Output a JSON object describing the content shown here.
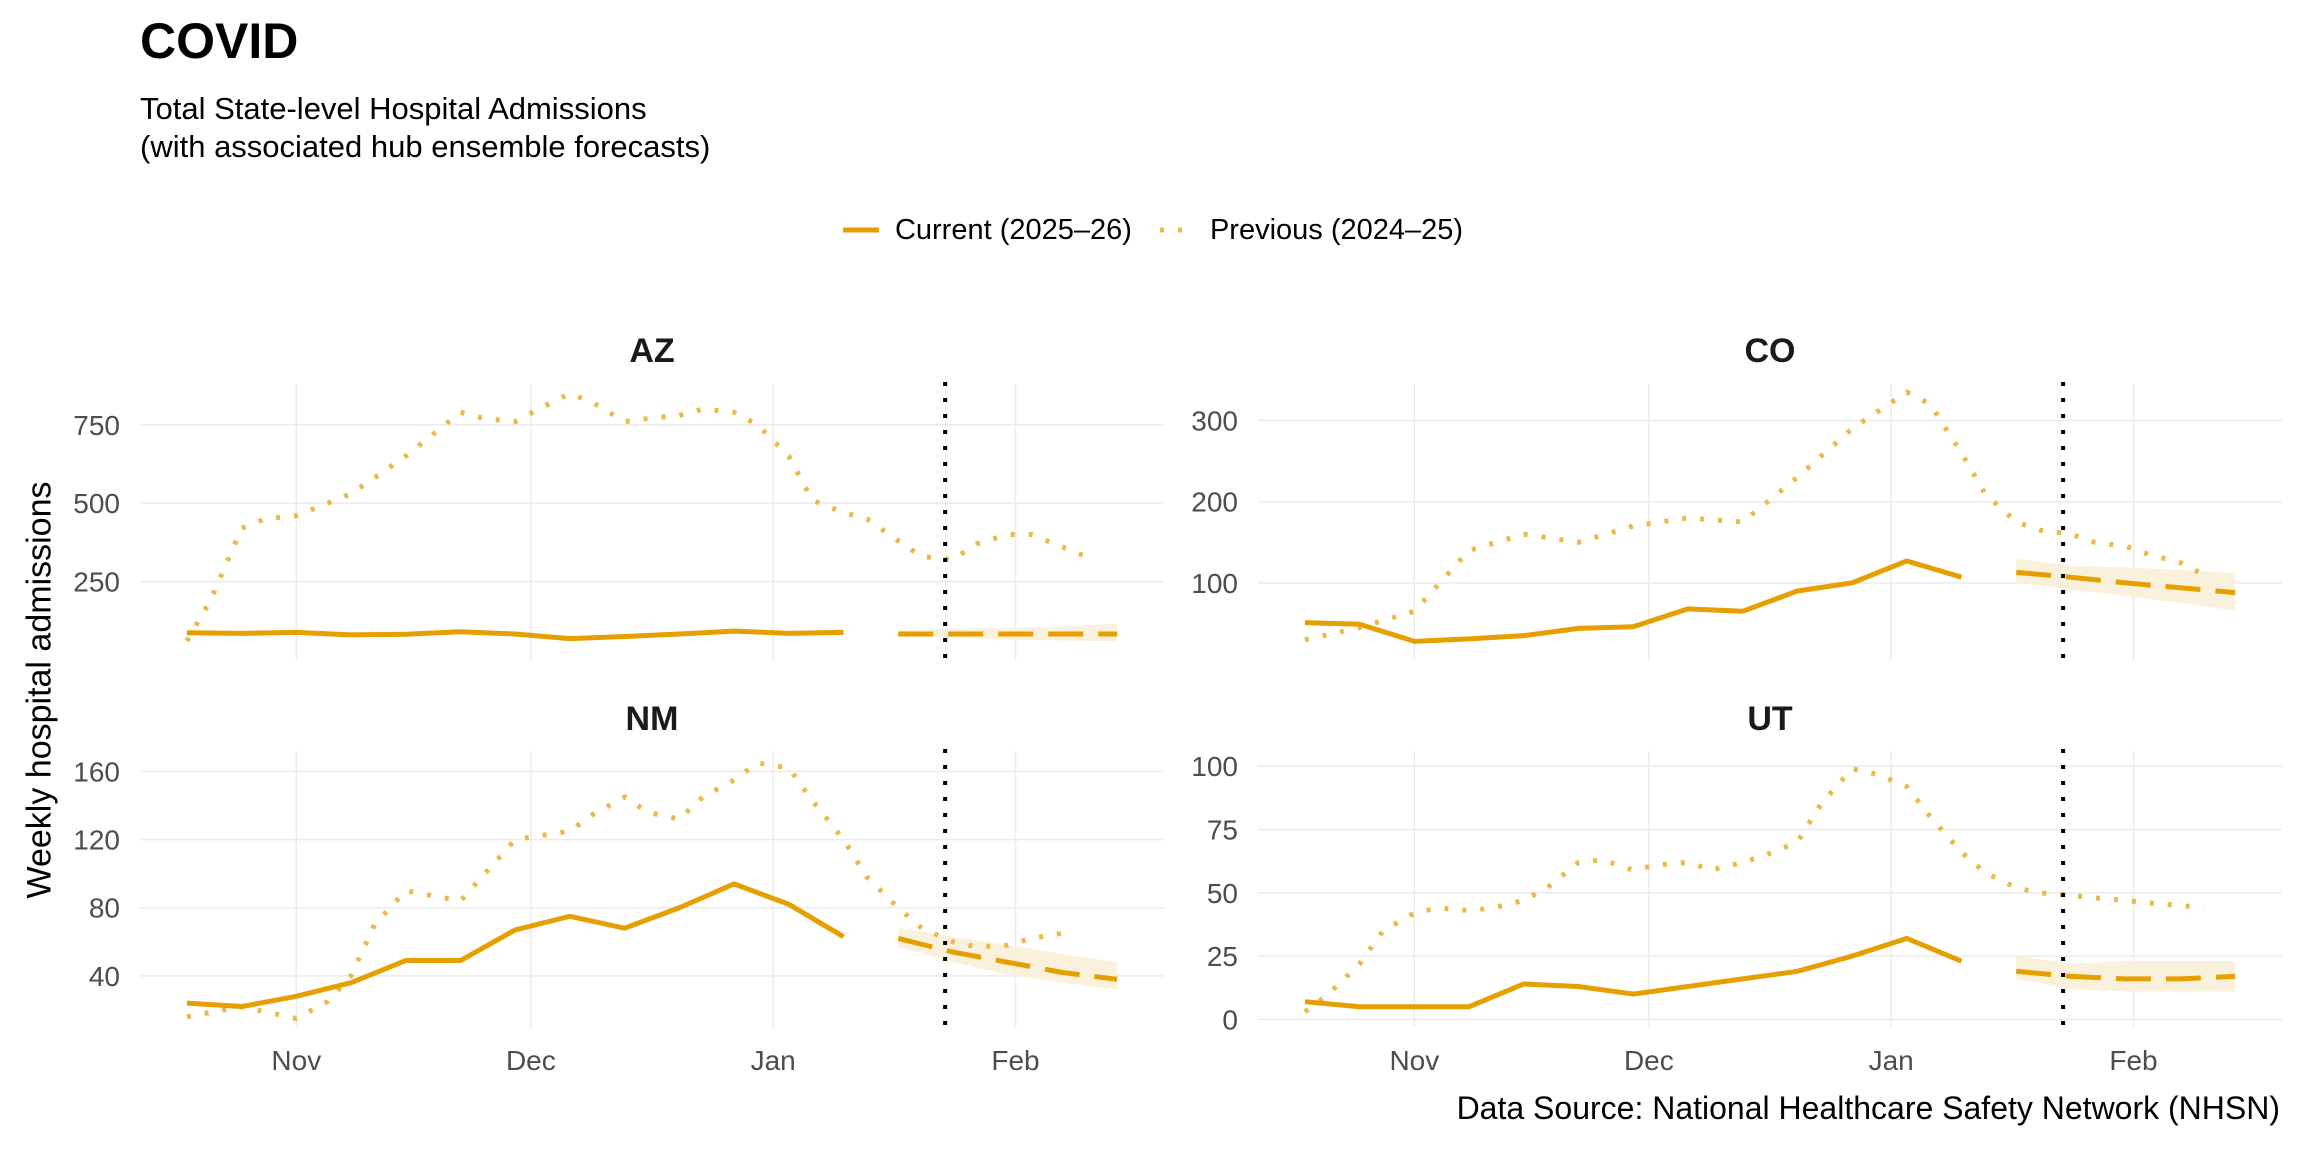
{
  "header": {
    "title": "COVID",
    "subtitle": "Total State-level Hospital Admissions\n(with associated hub ensemble forecasts)"
  },
  "legend": {
    "position": "top-center",
    "items": [
      {
        "label": "Current (2025–26)",
        "style": "solid"
      },
      {
        "label": "Previous (2024–25)",
        "style": "dotted"
      }
    ]
  },
  "colors": {
    "series": "#E69F00",
    "previous": "#EBB84A",
    "band": "#FAEFD9",
    "reference_line": "#000000",
    "grid": "#EBEBEB",
    "tick_text": "#4D4D4D"
  },
  "footer": {
    "source": "Data Source: National Healthcare Safety Network (NHSN)"
  },
  "chart_data": {
    "type": "line",
    "title": "COVID",
    "subtitle": "Total State-level Hospital Admissions (with associated hub ensemble forecasts)",
    "xlabel": "",
    "ylabel": "Weekly hospital admissions",
    "x_unit": "days since Oct 1",
    "x_ticks": [
      {
        "label": "Nov",
        "x": 31
      },
      {
        "label": "Dec",
        "x": 61
      },
      {
        "label": "Jan",
        "x": 92
      },
      {
        "label": "Feb",
        "x": 123
      }
    ],
    "xlim": [
      11,
      142
    ],
    "reference_date_x": 114,
    "grid": true,
    "panels": [
      {
        "name": "AZ",
        "ylim": [
          0,
          880
        ],
        "yticks": [
          250,
          500,
          750
        ],
        "current": {
          "x": [
            17,
            24,
            31,
            38,
            45,
            52,
            59,
            66,
            73,
            80,
            87,
            94,
            101
          ],
          "y": [
            87,
            85,
            88,
            80,
            82,
            90,
            83,
            68,
            75,
            83,
            92,
            85,
            88
          ]
        },
        "forecast": {
          "x": [
            108,
            115,
            122,
            129,
            136
          ],
          "median": [
            83,
            83,
            83,
            83,
            83
          ],
          "lower": [
            78,
            72,
            65,
            62,
            60
          ],
          "upper": [
            95,
            100,
            102,
            108,
            115
          ]
        },
        "previous": {
          "x": [
            17,
            20,
            24,
            27,
            31,
            38,
            45,
            52,
            55,
            59,
            62,
            66,
            69,
            73,
            76,
            80,
            83,
            87,
            90,
            94,
            97,
            101,
            104,
            108,
            111,
            115,
            118,
            122,
            125,
            129,
            132
          ],
          "y": [
            60,
            190,
            420,
            450,
            460,
            530,
            650,
            790,
            770,
            760,
            800,
            850,
            820,
            760,
            770,
            780,
            800,
            790,
            750,
            650,
            510,
            470,
            450,
            380,
            330,
            320,
            370,
            400,
            400,
            360,
            330
          ]
        }
      },
      {
        "name": "CO",
        "ylim": [
          5,
          345
        ],
        "yticks": [
          100,
          200,
          300
        ],
        "current": {
          "x": [
            17,
            24,
            31,
            38,
            45,
            52,
            59,
            66,
            73,
            80,
            87,
            94,
            101
          ],
          "y": [
            51,
            49,
            28,
            31,
            35,
            44,
            46,
            68,
            65,
            90,
            100,
            127,
            107
          ]
        },
        "forecast": {
          "x": [
            108,
            115,
            122,
            129,
            136
          ],
          "median": [
            113,
            107,
            100,
            94,
            88
          ],
          "lower": [
            100,
            92,
            84,
            75,
            66
          ],
          "upper": [
            130,
            121,
            119,
            116,
            112
          ]
        },
        "previous": {
          "x": [
            17,
            24,
            31,
            38,
            45,
            52,
            59,
            66,
            73,
            80,
            87,
            94,
            97,
            101,
            104,
            108,
            111,
            115,
            118,
            122,
            125,
            129,
            132
          ],
          "y": [
            30,
            45,
            65,
            140,
            160,
            150,
            170,
            180,
            175,
            230,
            290,
            335,
            320,
            260,
            210,
            175,
            165,
            160,
            150,
            145,
            135,
            125,
            110
          ]
        }
      },
      {
        "name": "NM",
        "ylim": [
          10,
          172
        ],
        "yticks": [
          40,
          80,
          120,
          160
        ],
        "current": {
          "x": [
            17,
            24,
            31,
            38,
            45,
            52,
            59,
            66,
            73,
            80,
            87,
            94,
            101
          ],
          "y": [
            24,
            22,
            28,
            36,
            49,
            49,
            67,
            75,
            68,
            80,
            94,
            82,
            63
          ]
        },
        "forecast": {
          "x": [
            108,
            115,
            122,
            129,
            136
          ],
          "median": [
            62,
            54,
            48,
            42,
            38
          ],
          "lower": [
            57,
            48,
            41,
            36,
            32
          ],
          "upper": [
            68,
            63,
            58,
            53,
            48
          ]
        },
        "previous": {
          "x": [
            17,
            24,
            31,
            35,
            38,
            41,
            45,
            52,
            59,
            66,
            69,
            73,
            76,
            80,
            83,
            87,
            90,
            94,
            97,
            101,
            104,
            108,
            111,
            115,
            118,
            122,
            125,
            129
          ],
          "y": [
            16,
            22,
            15,
            25,
            40,
            70,
            90,
            84,
            120,
            125,
            135,
            145,
            136,
            132,
            145,
            155,
            165,
            162,
            143,
            120,
            98,
            80,
            68,
            60,
            57,
            58,
            62,
            65
          ]
        }
      },
      {
        "name": "UT",
        "ylim": [
          -3,
          106
        ],
        "yticks": [
          0,
          25,
          50,
          75,
          100
        ],
        "current": {
          "x": [
            17,
            24,
            31,
            38,
            45,
            52,
            59,
            66,
            73,
            80,
            87,
            94,
            101
          ],
          "y": [
            7,
            5,
            5,
            5,
            14,
            13,
            10,
            13,
            16,
            19,
            25,
            32,
            23
          ]
        },
        "forecast": {
          "x": [
            108,
            115,
            122,
            129,
            136
          ],
          "median": [
            19,
            17,
            16,
            16,
            17
          ],
          "lower": [
            16,
            12,
            11,
            11,
            11
          ],
          "upper": [
            25,
            22,
            23,
            23,
            23
          ]
        },
        "previous": {
          "x": [
            17,
            20,
            24,
            27,
            31,
            34,
            38,
            41,
            45,
            48,
            52,
            55,
            59,
            62,
            66,
            69,
            73,
            76,
            80,
            83,
            87,
            90,
            94,
            97,
            101,
            104,
            108,
            111,
            115,
            118,
            122,
            125,
            129,
            132
          ],
          "y": [
            3,
            10,
            22,
            35,
            42,
            44,
            43,
            44,
            47,
            52,
            62,
            63,
            59,
            61,
            62,
            59,
            62,
            65,
            70,
            85,
            99,
            97,
            92,
            80,
            66,
            58,
            52,
            50,
            49,
            48,
            47,
            46,
            45,
            44
          ]
        }
      }
    ]
  }
}
